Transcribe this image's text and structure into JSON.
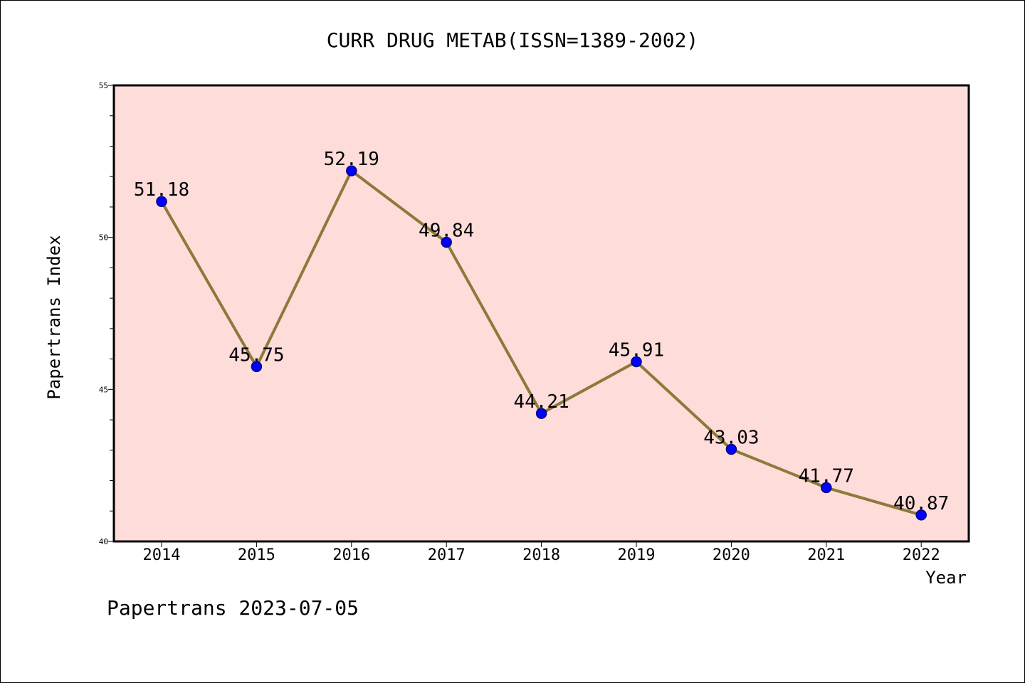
{
  "chart_data": {
    "type": "line",
    "title": "CURR DRUG METAB(ISSN=1389-2002)",
    "xlabel": "Year",
    "ylabel": "Papertrans Index",
    "categories": [
      "2014",
      "2015",
      "2016",
      "2017",
      "2018",
      "2019",
      "2020",
      "2021",
      "2022"
    ],
    "series": [
      {
        "values": [
          51.18,
          45.75,
          52.19,
          49.84,
          44.21,
          45.91,
          43.03,
          41.77,
          40.87
        ],
        "labels": [
          "51.18",
          "45.75",
          "52.19",
          "49.84",
          "44.21",
          "45.91",
          "43.03",
          "41.77",
          "40.87"
        ]
      }
    ],
    "ylim": [
      40,
      55
    ],
    "yticks": [
      "40",
      "45",
      "50",
      "55"
    ],
    "grid": false,
    "legend": "none",
    "colors": {
      "plot_background": "#fddcda",
      "line": "#8b7a3a",
      "marker": "#0000ff",
      "marker_edge": "#000080"
    }
  },
  "footer": {
    "text": "Papertrans 2023-07-05"
  }
}
